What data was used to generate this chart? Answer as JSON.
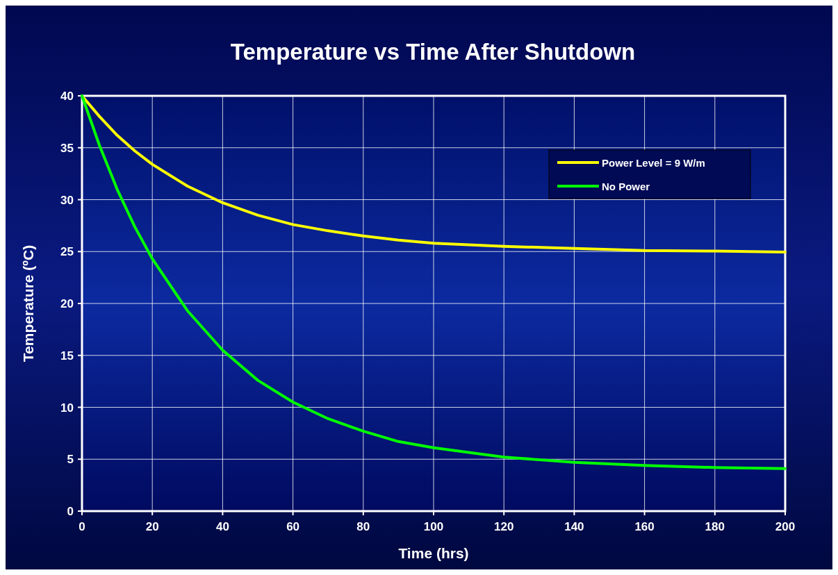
{
  "chart_data": {
    "type": "line",
    "title": "Temperature vs Time After Shutdown",
    "xlabel": "Time (hrs)",
    "ylabel": "Temperature (ºC)",
    "x": [
      0,
      5,
      10,
      15,
      20,
      30,
      40,
      50,
      60,
      70,
      80,
      90,
      100,
      120,
      140,
      160,
      180,
      200
    ],
    "series": [
      {
        "name": "Power Level = 9 W/m",
        "color": "#ffff00",
        "values": [
          40,
          38,
          36.2,
          34.7,
          33.4,
          31.3,
          29.7,
          28.5,
          27.6,
          27,
          26.5,
          26.1,
          25.8,
          25.5,
          25.3,
          25.1,
          25.05,
          24.95
        ]
      },
      {
        "name": "No Power",
        "color": "#00ff00",
        "values": [
          40,
          35.2,
          31,
          27.4,
          24.3,
          19.3,
          15.5,
          12.6,
          10.5,
          8.9,
          7.7,
          6.7,
          6.1,
          5.2,
          4.7,
          4.4,
          4.2,
          4.1
        ]
      }
    ],
    "xlim": [
      0,
      200
    ],
    "xticks": [
      0,
      20,
      40,
      60,
      80,
      100,
      120,
      140,
      160,
      180,
      200
    ],
    "ylim": [
      0,
      40
    ],
    "yticks": [
      0,
      5,
      10,
      15,
      20,
      25,
      30,
      35,
      40
    ],
    "grid": true,
    "legend": "top right",
    "marker": "none",
    "line_style": "solid"
  }
}
